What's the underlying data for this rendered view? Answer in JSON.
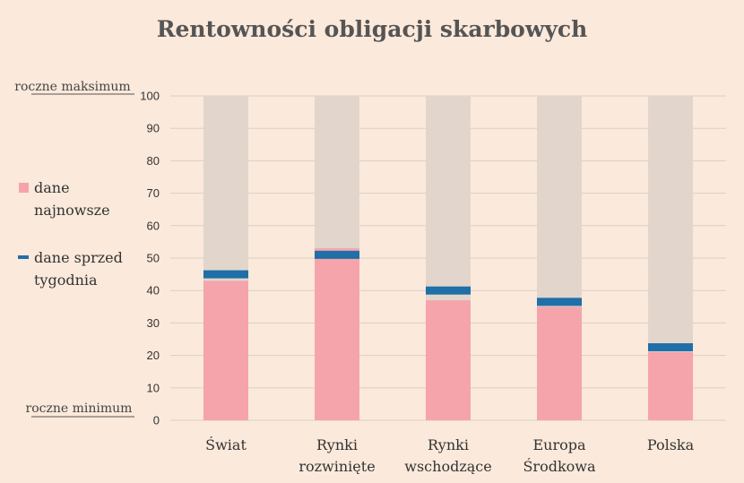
{
  "chart_data": {
    "type": "bar",
    "title": "Rentowności obligacji skarbowych",
    "ylim": [
      0,
      100
    ],
    "y_ticks": [
      0,
      10,
      20,
      30,
      40,
      50,
      60,
      70,
      80,
      90,
      100
    ],
    "grid": true,
    "y_max_label": "roczne maksimum",
    "y_min_label": "roczne minimum",
    "categories": [
      [
        "Świat"
      ],
      [
        "Rynki",
        "rozwinięte"
      ],
      [
        "Rynki",
        "wschodzące"
      ],
      [
        "Europa",
        "Środkowa"
      ],
      [
        "Polska"
      ]
    ],
    "range_values": [
      100,
      100,
      100,
      100,
      100
    ],
    "series": [
      {
        "name": "dane najnowsze",
        "type": "bar",
        "values": [
          43,
          53,
          37,
          35,
          21
        ]
      },
      {
        "name": "dane sprzed tygodnia",
        "type": "marker",
        "values": [
          45,
          51,
          40,
          36.5,
          22.5
        ]
      }
    ],
    "legend": {
      "position": "left",
      "entries": [
        {
          "lines": [
            "dane",
            "najnowsze"
          ]
        },
        {
          "lines": [
            "dane sprzed",
            "tygodnia"
          ]
        }
      ]
    },
    "colors": {
      "background": "#fbe9db",
      "range": "#e2d6cc",
      "latest": "#f5a4ac",
      "week_ago": "#1f6fa8",
      "grid": "#d9cfc8"
    }
  }
}
